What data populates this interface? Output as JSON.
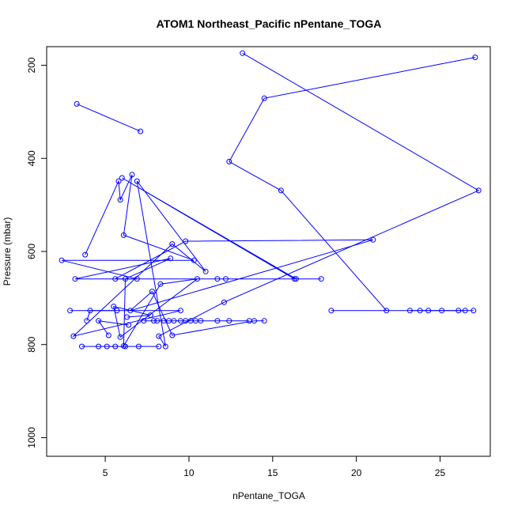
{
  "chart_data": {
    "type": "line",
    "title": "ATOM1 Northeast_Pacific nPentane_TOGA",
    "xlabel": "nPentane_TOGA",
    "ylabel": "Pressure (mbar)",
    "xlim": [
      1.5,
      28
    ],
    "ylim": [
      1040,
      160
    ],
    "y_reversed": true,
    "x_ticks": [
      5,
      10,
      15,
      20,
      25
    ],
    "y_ticks": [
      200,
      400,
      600,
      800,
      1000
    ],
    "grid": false,
    "legend": "none",
    "marker": "open-circle",
    "series_color": "#0000ff",
    "series": [
      {
        "x": [
          3.3,
          7.1
        ],
        "y": [
          283,
          342
        ]
      },
      {
        "x": [
          27.1,
          14.5,
          12.4,
          15.5,
          21.8,
          18.5,
          26.5
        ],
        "y": [
          183,
          271,
          407,
          469,
          727,
          727,
          727
        ]
      },
      {
        "x": [
          13.2,
          27.3,
          12.1,
          8.2,
          8.6,
          6.9,
          11.0,
          9.0,
          3.1,
          9.5,
          2.9
        ],
        "y": [
          174,
          469,
          709,
          782,
          804,
          449,
          643,
          584,
          782,
          727,
          727
        ]
      },
      {
        "x": [
          3.8,
          5.8,
          5.9,
          6.6,
          6.1,
          10.3,
          2.4,
          6.9,
          3.2,
          8.9,
          6.2,
          6.1,
          8.3,
          10.5,
          5.9,
          5.5,
          7.7,
          6.3
        ],
        "y": [
          607,
          449,
          489,
          435,
          565,
          619,
          619,
          659,
          659,
          615,
          659,
          803,
          670,
          659,
          784,
          718,
          737,
          741
        ]
      },
      {
        "x": [
          5.2,
          4.6,
          6.4
        ],
        "y": [
          780,
          749,
          758
        ]
      },
      {
        "x": [
          5.7,
          4.1,
          3.9
        ],
        "y": [
          727,
          727,
          749
        ]
      },
      {
        "x": [
          16.4,
          6.0,
          16.3,
          12.2,
          17.9,
          11.7,
          5.6,
          9.8,
          21.0,
          6.5,
          7.8,
          9.0,
          13.9,
          14.5
        ],
        "y": [
          659,
          442,
          659,
          659,
          659,
          659,
          659,
          578,
          575,
          727,
          686,
          780,
          749,
          749
        ]
      },
      {
        "x": [
          3.6,
          4.6,
          5.1,
          5.6,
          6.2,
          7.0,
          8.2
        ],
        "y": [
          804,
          804,
          804,
          804,
          804,
          804,
          804
        ]
      },
      {
        "x": [
          7.3,
          7.9,
          8.1,
          8.5,
          8.8,
          9.1,
          9.5,
          9.8,
          10.1,
          10.4,
          10.7,
          11.7,
          12.4,
          13.6
        ],
        "y": [
          749,
          749,
          749,
          749,
          749,
          749,
          749,
          749,
          749,
          749,
          749,
          749,
          749,
          749
        ]
      },
      {
        "x": [
          23.2,
          23.8,
          24.3,
          25.1,
          26.1,
          27.0
        ],
        "y": [
          727,
          727,
          727,
          727,
          727,
          727
        ]
      }
    ]
  }
}
